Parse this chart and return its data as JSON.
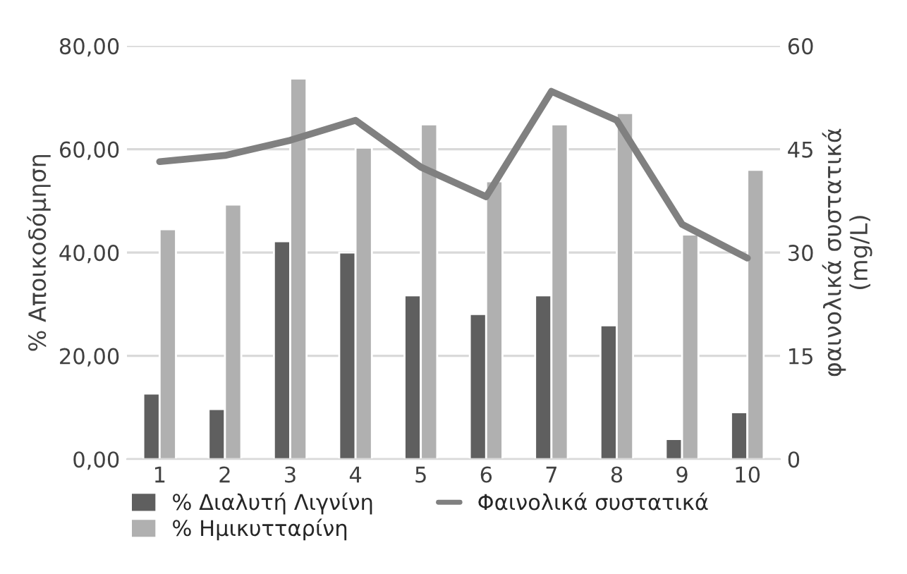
{
  "chart_data": {
    "type": "bar",
    "ylabel": "% Αποικοδόμηση",
    "y2label": "φαινολικά συστατικά\n(mg/L)",
    "categories": [
      "1",
      "2",
      "3",
      "4",
      "5",
      "6",
      "7",
      "8",
      "9",
      "10"
    ],
    "series": [
      {
        "name": "% Διαλυτή Λιγνίνη",
        "color": "#5f5f5f",
        "values": [
          12.7,
          9.7,
          42.2,
          40.0,
          31.7,
          28.1,
          31.7,
          25.9,
          3.9,
          9.1
        ]
      },
      {
        "name": "% Ημικυτταρίνη",
        "color": "#b0b0b0",
        "values": [
          44.5,
          49.3,
          73.7,
          60.3,
          64.8,
          53.8,
          64.8,
          67.0,
          43.5,
          56.0
        ]
      },
      {
        "name": "Φαινολικά συστατικά",
        "type": "line",
        "axis": "y2",
        "color": "#808080",
        "values": [
          43.2,
          44.1,
          46.3,
          49.2,
          42.4,
          38.1,
          53.4,
          49.2,
          34.1,
          29.2
        ]
      }
    ],
    "ylim": [
      0,
      80
    ],
    "yticks": [
      {
        "value": 0,
        "label": "0,00"
      },
      {
        "value": 20,
        "label": "20,00"
      },
      {
        "value": 40,
        "label": "40,00"
      },
      {
        "value": 60,
        "label": "60,00"
      },
      {
        "value": 80,
        "label": "80,00"
      }
    ],
    "y2lim": [
      0,
      60
    ],
    "y2ticks": [
      0,
      15,
      30,
      45,
      60
    ],
    "grid": "y",
    "legend": "bottom"
  }
}
